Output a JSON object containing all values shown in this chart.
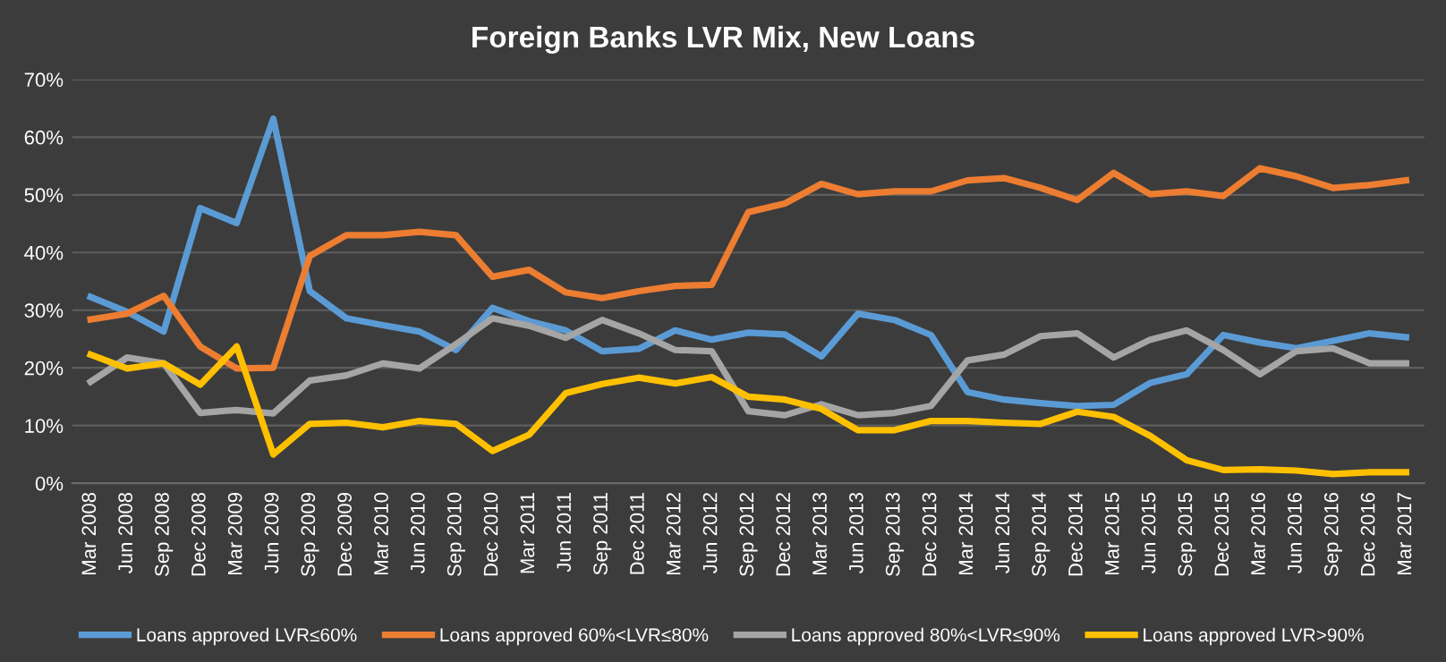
{
  "chart_data": {
    "type": "line",
    "title": "Foreign Banks LVR Mix, New Loans",
    "categories": [
      "Mar 2008",
      "Jun 2008",
      "Sep 2008",
      "Dec 2008",
      "Mar 2009",
      "Jun 2009",
      "Sep 2009",
      "Dec 2009",
      "Mar 2010",
      "Jun 2010",
      "Sep 2010",
      "Dec 2010",
      "Mar 2011",
      "Jun 2011",
      "Sep 2011",
      "Dec 2011",
      "Mar 2012",
      "Jun 2012",
      "Sep 2012",
      "Dec 2012",
      "Mar 2013",
      "Jun 2013",
      "Sep 2013",
      "Dec 2013",
      "Mar 2014",
      "Jun 2014",
      "Sep 2014",
      "Dec 2014",
      "Mar 2015",
      "Jun 2015",
      "Sep 2015",
      "Dec 2015",
      "Mar 2016",
      "Jun 2016",
      "Sep 2016",
      "Dec 2016",
      "Mar 2017"
    ],
    "series": [
      {
        "name": "Loans approved LVR≤60%",
        "color": "#5b9bd5",
        "values": [
          32.3,
          29.7,
          26.3,
          47.7,
          45.1,
          63.2,
          33.3,
          28.6,
          27.4,
          26.3,
          23.1,
          30.4,
          28.1,
          26.5,
          22.9,
          23.3,
          26.5,
          24.9,
          26.1,
          25.8,
          22.0,
          29.4,
          28.3,
          25.7,
          15.8,
          14.5,
          13.9,
          13.4,
          13.6,
          17.4,
          18.9,
          25.7,
          24.4,
          23.4,
          24.7,
          26.0,
          25.3
        ]
      },
      {
        "name": "Loans approved 60%<LVR≤80%",
        "color": "#ed7d31",
        "values": [
          28.4,
          29.4,
          32.5,
          23.7,
          19.9,
          20.0,
          39.4,
          43.0,
          43.0,
          43.6,
          43.0,
          35.8,
          37.0,
          33.1,
          32.1,
          33.3,
          34.2,
          34.4,
          47.0,
          48.5,
          51.9,
          50.1,
          50.6,
          50.6,
          52.5,
          52.9,
          51.2,
          49.1,
          53.8,
          50.1,
          50.6,
          49.8,
          54.6,
          53.2,
          51.2,
          51.7,
          52.5
        ]
      },
      {
        "name": "Loans approved 80%<LVR≤90%",
        "color": "#a5a5a5",
        "values": [
          17.6,
          21.8,
          20.8,
          12.2,
          12.7,
          12.1,
          17.8,
          18.7,
          20.8,
          19.9,
          24.1,
          28.6,
          27.3,
          25.2,
          28.3,
          26.0,
          23.1,
          22.9,
          12.5,
          11.8,
          13.7,
          11.8,
          12.2,
          13.4,
          21.3,
          22.3,
          25.5,
          26.0,
          21.8,
          24.9,
          26.5,
          23.1,
          18.9,
          22.9,
          23.4,
          20.8,
          20.8
        ]
      },
      {
        "name": "Loans approved LVR>90%",
        "color": "#ffc000",
        "values": [
          22.3,
          19.9,
          20.8,
          17.1,
          23.7,
          5.0,
          10.3,
          10.5,
          9.7,
          10.8,
          10.3,
          5.6,
          8.4,
          15.6,
          17.2,
          18.3,
          17.3,
          18.4,
          15.0,
          14.5,
          12.9,
          9.2,
          9.2,
          10.8,
          10.8,
          10.5,
          10.3,
          12.4,
          11.5,
          8.2,
          4.0,
          2.3,
          2.4,
          2.2,
          1.6,
          1.9,
          1.9
        ]
      }
    ],
    "ylim": [
      0,
      70
    ],
    "yticks": [
      {
        "value": 0,
        "label": "0%"
      },
      {
        "value": 10,
        "label": "10%"
      },
      {
        "value": 20,
        "label": "20%"
      },
      {
        "value": 30,
        "label": "30%"
      },
      {
        "value": 40,
        "label": "40%"
      },
      {
        "value": 50,
        "label": "50%"
      },
      {
        "value": 60,
        "label": "60%"
      },
      {
        "value": 70,
        "label": "70%"
      }
    ],
    "grid": "y",
    "legend": "bottom",
    "marker": "none",
    "line_style": "solid"
  }
}
